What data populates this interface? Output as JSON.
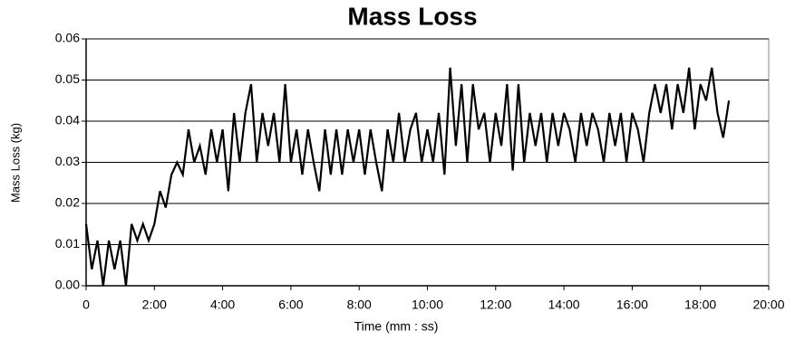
{
  "chart_data": {
    "type": "line",
    "title": "Mass Loss",
    "xlabel": "Time (mm : ss)",
    "ylabel": "Mass Loss (kg)",
    "x": [
      0,
      10,
      20,
      30,
      40,
      50,
      60,
      70,
      80,
      90,
      100,
      110,
      120,
      130,
      140,
      150,
      160,
      170,
      180,
      190,
      200,
      210,
      220,
      230,
      240,
      250,
      260,
      270,
      280,
      290,
      300,
      310,
      320,
      330,
      340,
      350,
      360,
      370,
      380,
      390,
      400,
      410,
      420,
      430,
      440,
      450,
      460,
      470,
      480,
      490,
      500,
      510,
      520,
      530,
      540,
      550,
      560,
      570,
      580,
      590,
      600,
      610,
      620,
      630,
      640,
      650,
      660,
      670,
      680,
      690,
      700,
      710,
      720,
      730,
      740,
      750,
      760,
      770,
      780,
      790,
      800,
      810,
      820,
      830,
      840,
      850,
      860,
      870,
      880,
      890,
      900,
      910,
      920,
      930,
      940,
      950,
      960,
      970,
      980,
      990,
      1000,
      1010,
      1020,
      1030,
      1040,
      1050,
      1060,
      1070,
      1080,
      1090,
      1100,
      1110,
      1120,
      1130
    ],
    "series": [
      {
        "name": "Mass Loss",
        "color": "#000000",
        "values": [
          0.015,
          0.004,
          0.011,
          0,
          0.011,
          0.004,
          0.011,
          0,
          0.015,
          0.011,
          0.015,
          0.011,
          0.015,
          0.023,
          0.019,
          0.027,
          0.03,
          0.027,
          0.038,
          0.03,
          0.034,
          0.027,
          0.038,
          0.03,
          0.038,
          0.023,
          0.042,
          0.03,
          0.042,
          0.049,
          0.03,
          0.042,
          0.034,
          0.042,
          0.03,
          0.049,
          0.03,
          0.038,
          0.027,
          0.038,
          0.03,
          0.023,
          0.038,
          0.027,
          0.038,
          0.027,
          0.038,
          0.03,
          0.038,
          0.027,
          0.038,
          0.03,
          0.023,
          0.038,
          0.03,
          0.042,
          0.03,
          0.038,
          0.042,
          0.03,
          0.038,
          0.03,
          0.042,
          0.027,
          0.053,
          0.034,
          0.049,
          0.03,
          0.049,
          0.038,
          0.042,
          0.03,
          0.042,
          0.034,
          0.049,
          0.028,
          0.049,
          0.03,
          0.042,
          0.034,
          0.042,
          0.03,
          0.042,
          0.034,
          0.042,
          0.038,
          0.03,
          0.042,
          0.034,
          0.042,
          0.038,
          0.03,
          0.042,
          0.034,
          0.042,
          0.03,
          0.042,
          0.038,
          0.03,
          0.042,
          0.049,
          0.042,
          0.049,
          0.038,
          0.049,
          0.042,
          0.053,
          0.038,
          0.049,
          0.045,
          0.053,
          0.042,
          0.036,
          0.045
        ]
      }
    ],
    "xlim": [
      0,
      1200
    ],
    "xticks": [
      0,
      {
        "value": 120,
        "label": "2:00"
      },
      {
        "value": 240,
        "label": "4:00"
      },
      {
        "value": 360,
        "label": "6:00"
      },
      {
        "value": 480,
        "label": "8:00"
      },
      {
        "value": 600,
        "label": "10:00"
      },
      {
        "value": 720,
        "label": "12:00"
      },
      {
        "value": 840,
        "label": "14:00"
      },
      {
        "value": 960,
        "label": "16:00"
      },
      {
        "value": 1080,
        "label": "18:00"
      },
      {
        "value": 1200,
        "label": "20:00"
      }
    ],
    "ylim": [
      0,
      0.06
    ],
    "yticks": [
      {
        "value": 0,
        "label": "0.00"
      },
      0.01,
      0.02,
      0.03,
      0.04,
      0.05,
      0.06
    ],
    "grid": true
  }
}
